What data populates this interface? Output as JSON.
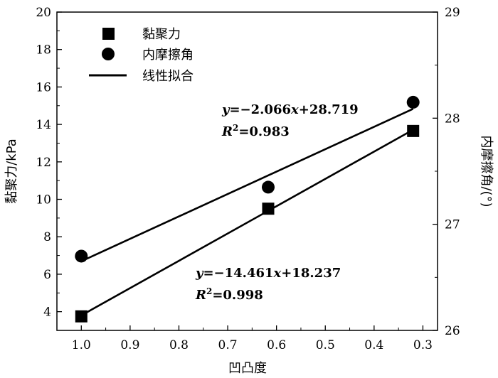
{
  "chart_data": {
    "type": "scatter",
    "xlabel": "凹凸度",
    "ylabel_left": "黏聚力/kPa",
    "ylabel_right": "内摩擦角/(°)",
    "x_reversed": true,
    "xlim": [
      1.05,
      0.27
    ],
    "x_ticks": [
      "1.0",
      "0.9",
      "0.8",
      "0.7",
      "0.6",
      "0.5",
      "0.4",
      "0.3"
    ],
    "ylim_left": [
      3,
      20
    ],
    "y_ticks_left": [
      "4",
      "6",
      "8",
      "10",
      "12",
      "14",
      "16",
      "18",
      "20"
    ],
    "ylim_right": [
      26,
      29
    ],
    "y_ticks_right": [
      "26",
      "27",
      "28",
      "29"
    ],
    "legend": {
      "placement": "top-left",
      "items": [
        {
          "label": "黏聚力",
          "marker": "square"
        },
        {
          "label": "内摩擦角",
          "marker": "circle"
        },
        {
          "label": "线性拟合",
          "marker": "line"
        }
      ]
    },
    "series": [
      {
        "name": "黏聚力",
        "axis": "left",
        "marker": "square",
        "x": [
          1.0,
          0.617,
          0.32
        ],
        "y": [
          3.75,
          9.5,
          13.65
        ],
        "fit": {
          "slope": -14.461,
          "intercept": 18.237,
          "equation_parts": [
            "y",
            "=−14.461",
            "x",
            "+18.237"
          ],
          "r2_parts": [
            "R",
            "2",
            "=0.998"
          ]
        }
      },
      {
        "name": "内摩擦角",
        "axis": "right",
        "marker": "circle",
        "x": [
          1.0,
          0.617,
          0.32
        ],
        "y": [
          26.7,
          27.35,
          28.15
        ],
        "fit": {
          "slope": -2.066,
          "intercept": 28.719,
          "equation_parts": [
            "y",
            "=−2.066",
            "x",
            "+28.719"
          ],
          "r2_parts": [
            "R",
            "2",
            "=0.983"
          ]
        }
      }
    ],
    "colors": {
      "marker": "#000000",
      "line": "#000000"
    }
  }
}
